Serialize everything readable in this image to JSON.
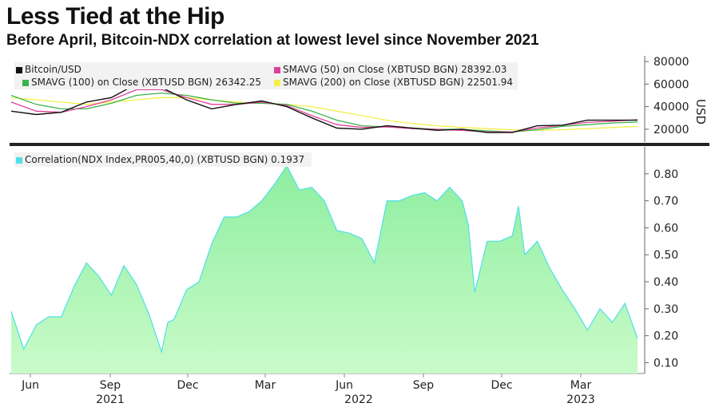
{
  "header": {
    "title": "Less Tied at the Hip",
    "subtitle": "Before April, Bitcoin-NDX correlation at lowest level since November 2021"
  },
  "top_legend": [
    {
      "label": "Bitcoin/USD",
      "color": "#111111"
    },
    {
      "label": "SMAVG (50)  on Close (XBTUSD BGN)  28392.03",
      "color": "#e0409a"
    },
    {
      "label": "SMAVG (100)  on Close (XBTUSD BGN) 26342.25",
      "color": "#3cb34a"
    },
    {
      "label": "SMAVG (200)  on Close (XBTUSD BGN) 22501.94",
      "color": "#f4ef4a"
    }
  ],
  "bottom_legend": {
    "label": "Correlation(NDX Index,PR005,40,0) (XBTUSD BGN) 0.1937",
    "color": "#4fe0e8"
  },
  "x_axis": {
    "months": [
      "Jun",
      "Sep",
      "Dec",
      "Mar",
      "Jun",
      "Sep",
      "Dec",
      "Mar"
    ],
    "years": [
      "2021",
      "2022",
      "2023"
    ]
  },
  "chart_data": [
    {
      "type": "line",
      "ylabel": "USD",
      "ylim": [
        10000,
        85000
      ],
      "yticks": [
        "80000",
        "60000",
        "40000",
        "20000"
      ],
      "x": [
        0,
        4,
        8,
        12,
        16,
        20,
        24,
        28,
        32,
        36,
        40,
        44,
        48,
        52,
        56,
        60,
        64,
        68,
        72,
        76,
        80,
        84,
        88,
        92,
        96,
        100
      ],
      "series": [
        {
          "name": "Bitcoin/USD",
          "color": "#111111",
          "values": [
            36000,
            33000,
            35000,
            44000,
            48000,
            60000,
            57000,
            46000,
            38000,
            42000,
            45000,
            40000,
            30000,
            21000,
            20000,
            23000,
            21000,
            19000,
            20000,
            17000,
            17000,
            23000,
            23500,
            28000,
            28000,
            28000
          ]
        },
        {
          "name": "SMAVG (50)",
          "color": "#e0409a",
          "values": [
            44000,
            36000,
            35000,
            40000,
            46000,
            55000,
            55000,
            48000,
            42000,
            42000,
            44000,
            41000,
            32000,
            24000,
            21500,
            22000,
            20500,
            19800,
            19000,
            17500,
            17500,
            21000,
            23500,
            26000,
            27000,
            28392
          ]
        },
        {
          "name": "SMAVG (100)",
          "color": "#3cb34a",
          "values": [
            50000,
            42000,
            38000,
            38000,
            43000,
            50000,
            52000,
            50000,
            46000,
            43000,
            43000,
            42000,
            36000,
            28000,
            23000,
            22000,
            21000,
            20000,
            19800,
            18500,
            17500,
            19500,
            22500,
            24000,
            25500,
            26342
          ]
        },
        {
          "name": "SMAVG (200)",
          "color": "#f4ef4a",
          "values": [
            48000,
            46000,
            44000,
            42000,
            44000,
            46000,
            48000,
            48000,
            46000,
            44000,
            43000,
            42000,
            40000,
            36000,
            32000,
            28000,
            25000,
            23000,
            21500,
            20500,
            19500,
            19000,
            19500,
            20500,
            21500,
            22502
          ]
        }
      ]
    },
    {
      "type": "area",
      "ylim": [
        0.06,
        0.9
      ],
      "yticks": [
        "0.80",
        "0.70",
        "0.60",
        "0.50",
        "0.40",
        "0.30",
        "0.20",
        "0.10"
      ],
      "x": [
        0,
        2,
        4,
        6,
        8,
        10,
        12,
        14,
        16,
        18,
        20,
        22,
        24,
        25,
        26,
        28,
        30,
        32,
        34,
        36,
        38,
        40,
        42,
        44,
        46,
        48,
        50,
        52,
        54,
        56,
        58,
        60,
        62,
        64,
        66,
        68,
        70,
        72,
        73,
        74,
        76,
        78,
        80,
        81,
        82,
        84,
        86,
        88,
        90,
        92,
        94,
        96,
        98,
        100
      ],
      "series": [
        {
          "name": "Correlation(NDX Index,PR005,40,0)",
          "color": "#4fe0e8",
          "values": [
            0.29,
            0.15,
            0.24,
            0.27,
            0.27,
            0.38,
            0.47,
            0.42,
            0.35,
            0.46,
            0.39,
            0.28,
            0.14,
            0.25,
            0.26,
            0.37,
            0.4,
            0.54,
            0.64,
            0.64,
            0.66,
            0.7,
            0.76,
            0.83,
            0.74,
            0.75,
            0.7,
            0.59,
            0.58,
            0.56,
            0.47,
            0.7,
            0.7,
            0.72,
            0.73,
            0.7,
            0.75,
            0.7,
            0.61,
            0.36,
            0.55,
            0.55,
            0.57,
            0.68,
            0.5,
            0.55,
            0.45,
            0.37,
            0.3,
            0.22,
            0.3,
            0.25,
            0.32,
            0.19
          ]
        }
      ]
    }
  ]
}
